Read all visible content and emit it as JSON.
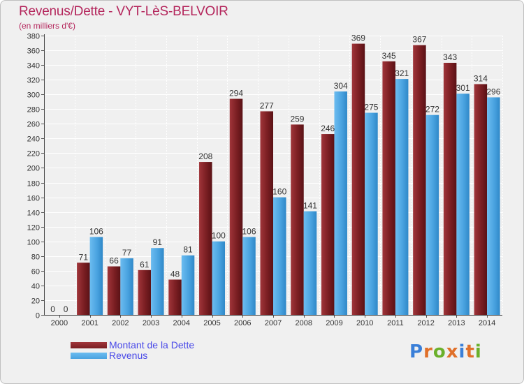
{
  "title": "Revenus/Dette - VYT-LèS-BELVOIR",
  "subtitle": "(en milliers d'€)",
  "colors": {
    "dette": "#7a1e22",
    "revenus": "#4aa3e0",
    "title": "#b4265c",
    "legend_text": "#4a4ae8"
  },
  "legend": {
    "dette_label": "Montant de la Dette",
    "revenus_label": "Revenus"
  },
  "logo": {
    "text": "Proxiti",
    "letter_colors": [
      "#3a7fd8",
      "#e0702a",
      "#6ab02a",
      "#e0702a",
      "#3a7fd8",
      "#e0702a",
      "#6ab02a"
    ]
  },
  "chart_data": {
    "type": "bar",
    "title": "Revenus/Dette - VYT-LèS-BELVOIR",
    "ylabel": "(en milliers d'€)",
    "xlabel": "",
    "categories": [
      "2000",
      "2001",
      "2002",
      "2003",
      "2004",
      "2005",
      "2006",
      "2007",
      "2008",
      "2009",
      "2010",
      "2011",
      "2012",
      "2013",
      "2014"
    ],
    "series": [
      {
        "name": "Montant de la Dette",
        "color": "#7a1e22",
        "values": [
          0,
          71,
          66,
          61,
          48,
          208,
          294,
          277,
          259,
          246,
          369,
          345,
          367,
          343,
          314
        ]
      },
      {
        "name": "Revenus",
        "color": "#4aa3e0",
        "values": [
          0,
          106,
          77,
          91,
          81,
          100,
          106,
          160,
          141,
          304,
          275,
          321,
          272,
          301,
          296
        ]
      }
    ],
    "ylim": [
      0,
      380
    ],
    "yticks": [
      0,
      20,
      40,
      60,
      80,
      100,
      120,
      140,
      160,
      180,
      200,
      220,
      240,
      260,
      280,
      300,
      320,
      340,
      360,
      380
    ],
    "grid": true,
    "legend_position": "bottom-left"
  }
}
